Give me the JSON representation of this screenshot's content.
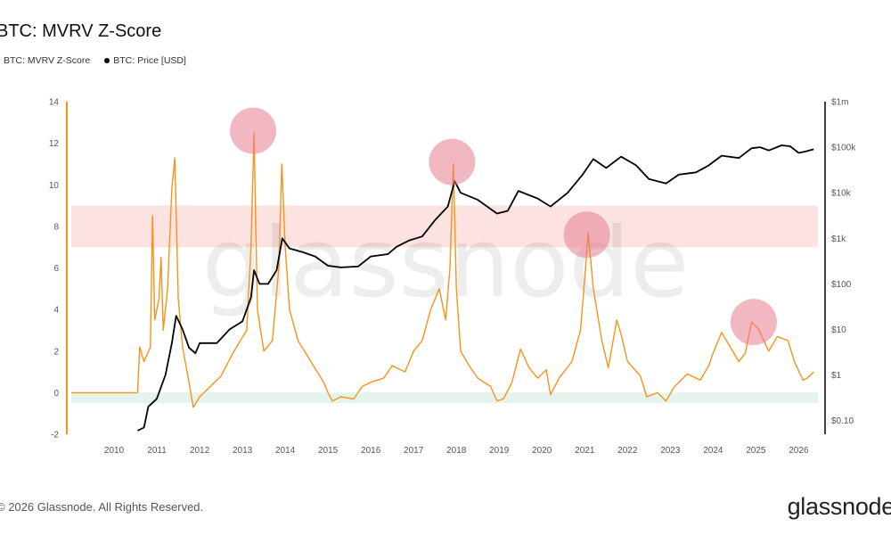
{
  "brand": "glassnode",
  "copyright": "© 2026 Glassnode. All Rights Reserved.",
  "colors": {
    "zscore": "#f7931a",
    "price": "#000000",
    "red_band": "#fde2e2",
    "green_band": "#e4f4ec",
    "peak_marker": "#e57e8f"
  },
  "chart_data": {
    "type": "line",
    "title": "BTC: MVRV Z-Score",
    "legend": "top-left",
    "grid": false,
    "x_ticks": [
      "2010",
      "2011",
      "2012",
      "2013",
      "2014",
      "2015",
      "2016",
      "2017",
      "2018",
      "2019",
      "2020",
      "2021",
      "2022",
      "2023",
      "2024",
      "2025",
      "2026"
    ],
    "y_left": {
      "range": [
        -2,
        14
      ],
      "ticks": [
        "-2",
        "0",
        "2",
        "4",
        "6",
        "8",
        "10",
        "12",
        "14"
      ]
    },
    "y_right": {
      "scale": "log",
      "range": [
        0.05,
        1000000
      ],
      "ticks": [
        "$0.10",
        "$1",
        "$10",
        "$100",
        "$1k",
        "$10k",
        "$100k",
        "$1m"
      ]
    },
    "bands": [
      {
        "name": "overvalued",
        "y_range": [
          7,
          9
        ]
      },
      {
        "name": "undervalued",
        "y_range": [
          -0.5,
          0
        ]
      }
    ],
    "highlights": [
      {
        "x": 2013.25,
        "y": 12.6
      },
      {
        "x": 2017.9,
        "y": 11.1
      },
      {
        "x": 2021.05,
        "y": 7.6
      },
      {
        "x": 2024.95,
        "y": 3.4
      }
    ],
    "series": [
      {
        "name": "BTC: MVRV Z-Score",
        "axis": "left",
        "points": [
          [
            2009.0,
            0
          ],
          [
            2010.55,
            0
          ],
          [
            2010.6,
            2.2
          ],
          [
            2010.7,
            1.5
          ],
          [
            2010.85,
            2.2
          ],
          [
            2010.9,
            8.5
          ],
          [
            2010.95,
            3.5
          ],
          [
            2011.05,
            4.5
          ],
          [
            2011.1,
            6.5
          ],
          [
            2011.15,
            3
          ],
          [
            2011.25,
            5
          ],
          [
            2011.35,
            9.8
          ],
          [
            2011.42,
            11.3
          ],
          [
            2011.5,
            4.5
          ],
          [
            2011.6,
            2.2
          ],
          [
            2011.75,
            0.5
          ],
          [
            2011.85,
            -0.7
          ],
          [
            2012.0,
            -0.2
          ],
          [
            2012.2,
            0.2
          ],
          [
            2012.5,
            0.8
          ],
          [
            2012.75,
            1.8
          ],
          [
            2012.95,
            2.5
          ],
          [
            2013.1,
            3
          ],
          [
            2013.2,
            7
          ],
          [
            2013.27,
            12.5
          ],
          [
            2013.35,
            4
          ],
          [
            2013.5,
            2
          ],
          [
            2013.7,
            2.5
          ],
          [
            2013.85,
            6
          ],
          [
            2013.92,
            11
          ],
          [
            2014.0,
            7
          ],
          [
            2014.1,
            4
          ],
          [
            2014.3,
            2.5
          ],
          [
            2014.6,
            1.5
          ],
          [
            2014.9,
            0.5
          ],
          [
            2015.0,
            0
          ],
          [
            2015.1,
            -0.4
          ],
          [
            2015.3,
            -0.2
          ],
          [
            2015.6,
            -0.3
          ],
          [
            2015.8,
            0.3
          ],
          [
            2016.0,
            0.5
          ],
          [
            2016.3,
            0.7
          ],
          [
            2016.5,
            1.3
          ],
          [
            2016.8,
            1
          ],
          [
            2017.0,
            2
          ],
          [
            2017.2,
            2.5
          ],
          [
            2017.4,
            4
          ],
          [
            2017.6,
            5
          ],
          [
            2017.75,
            3.5
          ],
          [
            2017.85,
            6
          ],
          [
            2017.93,
            11
          ],
          [
            2018.0,
            5
          ],
          [
            2018.1,
            2
          ],
          [
            2018.3,
            1.3
          ],
          [
            2018.5,
            0.7
          ],
          [
            2018.8,
            0.3
          ],
          [
            2018.95,
            -0.4
          ],
          [
            2019.1,
            -0.3
          ],
          [
            2019.3,
            0.5
          ],
          [
            2019.5,
            2.1
          ],
          [
            2019.7,
            1.2
          ],
          [
            2019.9,
            0.7
          ],
          [
            2020.1,
            1.1
          ],
          [
            2020.2,
            -0.1
          ],
          [
            2020.4,
            0.7
          ],
          [
            2020.7,
            1.5
          ],
          [
            2020.9,
            3
          ],
          [
            2021.0,
            5.5
          ],
          [
            2021.08,
            7.7
          ],
          [
            2021.2,
            5
          ],
          [
            2021.4,
            2.5
          ],
          [
            2021.55,
            1.2
          ],
          [
            2021.75,
            3.5
          ],
          [
            2021.85,
            2.8
          ],
          [
            2022.0,
            1.5
          ],
          [
            2022.3,
            0.8
          ],
          [
            2022.45,
            -0.2
          ],
          [
            2022.7,
            0
          ],
          [
            2022.9,
            -0.4
          ],
          [
            2023.1,
            0.3
          ],
          [
            2023.4,
            0.9
          ],
          [
            2023.7,
            0.6
          ],
          [
            2023.9,
            1.3
          ],
          [
            2024.0,
            1.9
          ],
          [
            2024.2,
            2.9
          ],
          [
            2024.4,
            2.2
          ],
          [
            2024.6,
            1.5
          ],
          [
            2024.75,
            1.9
          ],
          [
            2024.9,
            3.4
          ],
          [
            2025.05,
            3.1
          ],
          [
            2025.3,
            2
          ],
          [
            2025.5,
            2.7
          ],
          [
            2025.75,
            2.5
          ],
          [
            2025.9,
            1.5
          ],
          [
            2026.1,
            0.6
          ],
          [
            2026.2,
            0.7
          ],
          [
            2026.35,
            1
          ]
        ]
      },
      {
        "name": "BTC: Price [USD]",
        "axis": "right",
        "points": [
          [
            2010.55,
            0.06
          ],
          [
            2010.7,
            0.07
          ],
          [
            2010.8,
            0.2
          ],
          [
            2011.0,
            0.3
          ],
          [
            2011.2,
            1
          ],
          [
            2011.35,
            5
          ],
          [
            2011.45,
            20
          ],
          [
            2011.6,
            10
          ],
          [
            2011.75,
            4
          ],
          [
            2011.9,
            3
          ],
          [
            2012.0,
            5
          ],
          [
            2012.4,
            5
          ],
          [
            2012.7,
            10
          ],
          [
            2013.0,
            15
          ],
          [
            2013.2,
            50
          ],
          [
            2013.27,
            200
          ],
          [
            2013.4,
            100
          ],
          [
            2013.6,
            100
          ],
          [
            2013.8,
            200
          ],
          [
            2013.93,
            1000
          ],
          [
            2014.1,
            600
          ],
          [
            2014.4,
            500
          ],
          [
            2014.7,
            400
          ],
          [
            2015.0,
            250
          ],
          [
            2015.3,
            230
          ],
          [
            2015.7,
            240
          ],
          [
            2016.0,
            400
          ],
          [
            2016.4,
            450
          ],
          [
            2016.6,
            650
          ],
          [
            2016.9,
            900
          ],
          [
            2017.2,
            1100
          ],
          [
            2017.5,
            2500
          ],
          [
            2017.8,
            5000
          ],
          [
            2017.96,
            18000
          ],
          [
            2018.1,
            10000
          ],
          [
            2018.5,
            7000
          ],
          [
            2018.95,
            3500
          ],
          [
            2019.2,
            4000
          ],
          [
            2019.45,
            11000
          ],
          [
            2019.9,
            7500
          ],
          [
            2020.2,
            5000
          ],
          [
            2020.6,
            10000
          ],
          [
            2020.95,
            25000
          ],
          [
            2021.2,
            55000
          ],
          [
            2021.5,
            35000
          ],
          [
            2021.85,
            62000
          ],
          [
            2022.2,
            40000
          ],
          [
            2022.5,
            20000
          ],
          [
            2022.9,
            16000
          ],
          [
            2023.2,
            25000
          ],
          [
            2023.6,
            28000
          ],
          [
            2023.9,
            40000
          ],
          [
            2024.2,
            65000
          ],
          [
            2024.6,
            58000
          ],
          [
            2024.9,
            95000
          ],
          [
            2025.1,
            100000
          ],
          [
            2025.3,
            85000
          ],
          [
            2025.6,
            110000
          ],
          [
            2025.8,
            105000
          ],
          [
            2026.0,
            75000
          ],
          [
            2026.15,
            80000
          ],
          [
            2026.35,
            90000
          ]
        ]
      }
    ]
  }
}
